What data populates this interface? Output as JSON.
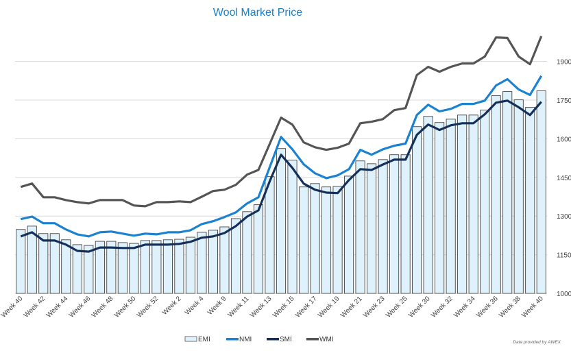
{
  "chart_data": {
    "type": "bar+line",
    "title": "Wool Market Price",
    "xlabel": "",
    "ylabel": "",
    "ylim": [
      1000,
      2000
    ],
    "yticks": [
      1000,
      1150,
      1300,
      1450,
      1600,
      1750,
      1900
    ],
    "grid": true,
    "legend_position": "bottom",
    "categories": [
      "Week 40",
      "",
      "Week 42",
      "",
      "Week 44",
      "",
      "Week 46",
      "",
      "Week 48",
      "",
      "Week 50",
      "",
      "Week 52",
      "",
      "Week 2",
      "",
      "Week 4",
      "",
      "Week 9",
      "",
      "Week 11",
      "",
      "Week 13",
      "",
      "Week 15",
      "",
      "Week 17",
      "",
      "Week 19",
      "",
      "Week 21",
      "",
      "Week 23",
      "",
      "Week 25",
      "",
      "Week 30",
      "",
      "Week 32",
      "",
      "Week 34",
      "",
      "Week 36",
      "",
      "Week 38",
      "",
      "Week 40"
    ],
    "series": [
      {
        "name": "EMI",
        "type": "bar",
        "color": "#dff1fb",
        "values": [
          1248,
          1261,
          1232,
          1232,
          1208,
          1189,
          1186,
          1202,
          1202,
          1197,
          1194,
          1205,
          1205,
          1208,
          1210,
          1218,
          1237,
          1245,
          1258,
          1290,
          1317,
          1344,
          1453,
          1562,
          1517,
          1413,
          1426,
          1413,
          1415,
          1455,
          1514,
          1503,
          1519,
          1538,
          1538,
          1647,
          1687,
          1663,
          1676,
          1692,
          1692,
          1711,
          1767,
          1783,
          1751,
          1722,
          1786
        ]
      },
      {
        "name": "NMI",
        "type": "line",
        "color": "#1a82d0",
        "values": [
          1288,
          1298,
          1272,
          1272,
          1248,
          1229,
          1221,
          1237,
          1240,
          1232,
          1224,
          1232,
          1229,
          1237,
          1237,
          1245,
          1269,
          1280,
          1296,
          1314,
          1349,
          1373,
          1490,
          1607,
          1559,
          1501,
          1466,
          1447,
          1458,
          1482,
          1557,
          1538,
          1559,
          1573,
          1581,
          1692,
          1732,
          1706,
          1716,
          1735,
          1735,
          1748,
          1807,
          1831,
          1791,
          1770,
          1844
        ]
      },
      {
        "name": "SMI",
        "type": "line",
        "color": "#14305a",
        "values": [
          1221,
          1237,
          1205,
          1205,
          1189,
          1165,
          1162,
          1178,
          1178,
          1176,
          1176,
          1189,
          1189,
          1189,
          1192,
          1200,
          1216,
          1221,
          1234,
          1261,
          1298,
          1322,
          1435,
          1538,
          1487,
          1426,
          1402,
          1391,
          1389,
          1440,
          1482,
          1479,
          1500,
          1519,
          1519,
          1615,
          1655,
          1634,
          1652,
          1660,
          1660,
          1695,
          1740,
          1748,
          1722,
          1692,
          1743
        ]
      },
      {
        "name": "WMI",
        "type": "line",
        "color": "#555555",
        "values": [
          1413,
          1426,
          1373,
          1373,
          1362,
          1354,
          1349,
          1362,
          1362,
          1362,
          1341,
          1338,
          1354,
          1354,
          1357,
          1354,
          1375,
          1397,
          1402,
          1421,
          1461,
          1479,
          1580,
          1682,
          1655,
          1586,
          1567,
          1557,
          1565,
          1581,
          1660,
          1666,
          1676,
          1711,
          1719,
          1847,
          1879,
          1860,
          1879,
          1892,
          1892,
          1919,
          1993,
          1991,
          1919,
          1889,
          1998
        ]
      }
    ],
    "footnote": "Data provided by AWEX"
  }
}
